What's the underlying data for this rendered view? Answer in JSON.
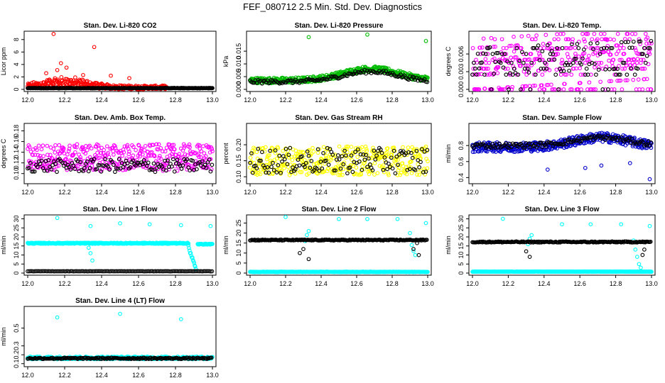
{
  "page": {
    "title": "FEF_080712  2.5 Min. Std. Dev. Diagnostics"
  },
  "chart_data": [
    {
      "id": "co2",
      "type": "scatter",
      "title": "Stan. Dev. Li-820 CO2",
      "ylabel": "Licor ppm",
      "xlim": [
        12.0,
        13.0
      ],
      "ylim": [
        0,
        9
      ],
      "xticks": [
        {
          "v": 12.0,
          "l": "12.0"
        },
        {
          "v": 12.2,
          "l": "12.2"
        },
        {
          "v": 12.4,
          "l": "12.4"
        },
        {
          "v": 12.6,
          "l": "12.6"
        },
        {
          "v": 12.8,
          "l": "12.8"
        },
        {
          "v": 13.0,
          "l": "13.0"
        }
      ],
      "yticks": [
        {
          "v": 0,
          "l": "0"
        },
        {
          "v": 2,
          "l": "2"
        },
        {
          "v": 4,
          "l": "4"
        },
        {
          "v": 6,
          "l": "6"
        },
        {
          "v": 8,
          "l": "8"
        }
      ],
      "series": [
        {
          "color": "#ff0000",
          "style": "peaked",
          "base": 0.3,
          "noise": 0.4,
          "x0": 12.0,
          "x1": 12.75,
          "peak_at": 12.2,
          "peak_h": 1.6,
          "outliers": [
            [
              12.14,
              8.9
            ],
            [
              12.36,
              6.8
            ],
            [
              12.18,
              4.2
            ],
            [
              12.21,
              3.5
            ],
            [
              12.16,
              3.1
            ],
            [
              12.1,
              2.6
            ],
            [
              12.3,
              2.3
            ],
            [
              12.45,
              2.2
            ],
            [
              12.55,
              1.8
            ]
          ]
        },
        {
          "color": "#000000",
          "style": "flat",
          "base": 0.2,
          "noise": 0.06,
          "x0": 12.0,
          "x1": 13.0
        }
      ]
    },
    {
      "id": "pressure",
      "type": "scatter",
      "title": "Stan. Dev. Li-820 Pressure",
      "ylabel": "kPa",
      "xlim": [
        12.0,
        13.0
      ],
      "ylim": [
        0,
        0.022
      ],
      "xticks": [
        {
          "v": 12.0,
          "l": "12.0"
        },
        {
          "v": 12.2,
          "l": "12.2"
        },
        {
          "v": 12.4,
          "l": "12.4"
        },
        {
          "v": 12.6,
          "l": "12.6"
        },
        {
          "v": 12.8,
          "l": "12.8"
        },
        {
          "v": 13.0,
          "l": "13.0"
        }
      ],
      "yticks": [
        {
          "v": 0,
          "l": "0.000"
        },
        {
          "v": 0.005,
          "l": "0.005"
        },
        {
          "v": 0.01,
          "l": "0.010"
        },
        {
          "v": 0.015,
          "l": "0.015"
        }
      ],
      "series": [
        {
          "color": "#00bb00",
          "style": "hump",
          "base": 0.0035,
          "noise": 0.0022,
          "x0": 12.0,
          "x1": 13.0,
          "peak_at": 12.68,
          "peak_h": 0.0045,
          "outliers": [
            [
              12.33,
              0.0205
            ],
            [
              12.66,
              0.0215
            ],
            [
              12.99,
              0.019
            ]
          ]
        },
        {
          "color": "#000000",
          "style": "hump",
          "base": 0.003,
          "noise": 0.0015,
          "x0": 12.0,
          "x1": 13.0,
          "peak_at": 12.68,
          "peak_h": 0.004,
          "sparse": 3
        }
      ]
    },
    {
      "id": "temp",
      "type": "scatter",
      "title": "Stan. Dev. Li-820 Temp.",
      "ylabel": "degrees C",
      "xlim": [
        12.0,
        13.0
      ],
      "ylim": [
        0,
        0.0095
      ],
      "xticks": [
        {
          "v": 12.0,
          "l": "12.0"
        },
        {
          "v": 12.2,
          "l": "12.2"
        },
        {
          "v": 12.4,
          "l": "12.4"
        },
        {
          "v": 12.6,
          "l": "12.6"
        },
        {
          "v": 12.8,
          "l": "12.8"
        },
        {
          "v": 13.0,
          "l": "13.0"
        }
      ],
      "yticks": [
        {
          "v": 0,
          "l": "0.000"
        },
        {
          "v": 0.003,
          "l": "0.003"
        },
        {
          "v": 0.006,
          "l": "0.006"
        }
      ],
      "series": [
        {
          "color": "#ff00ff",
          "style": "banded",
          "levels": [
            0.0,
            0.0025,
            0.0035,
            0.0045,
            0.005,
            0.006,
            0.007,
            0.0085
          ],
          "trend": 0.003,
          "x0": 12.0,
          "x1": 13.0
        },
        {
          "color": "#000000",
          "style": "banded",
          "levels": [
            0.0025,
            0.0035,
            0.0045,
            0.006,
            0.007
          ],
          "trend": 0.002,
          "x0": 12.0,
          "x1": 13.0,
          "sparse": 3
        }
      ]
    },
    {
      "id": "ambbox",
      "type": "scatter",
      "title": "Stan. Dev. Amb. Box Temp.",
      "ylabel": "degrees C",
      "xlim": [
        12.0,
        13.0
      ],
      "ylim": [
        0.085,
        0.19
      ],
      "xticks": [
        {
          "v": 12.0,
          "l": "12.0"
        },
        {
          "v": 12.2,
          "l": "12.2"
        },
        {
          "v": 12.4,
          "l": "12.4"
        },
        {
          "v": 12.6,
          "l": "12.6"
        },
        {
          "v": 12.8,
          "l": "12.8"
        },
        {
          "v": 13.0,
          "l": "13.0"
        }
      ],
      "yticks": [
        {
          "v": 0.1,
          "l": "0.10"
        },
        {
          "v": 0.12,
          "l": "0.12"
        },
        {
          "v": 0.14,
          "l": "0.14"
        },
        {
          "v": 0.16,
          "l": "0.16"
        },
        {
          "v": 0.18,
          "l": "0.18"
        }
      ],
      "series": [
        {
          "color": "#ff00ff",
          "style": "flat",
          "base": 0.13,
          "noise": 0.05,
          "x0": 12.0,
          "x1": 13.0
        },
        {
          "color": "#000000",
          "style": "flat",
          "base": 0.115,
          "noise": 0.025,
          "x0": 12.0,
          "x1": 13.0,
          "sparse": 3
        }
      ]
    },
    {
      "id": "rh",
      "type": "scatter",
      "title": "Stan. Dev. Gas Stream RH",
      "ylabel": "percent",
      "xlim": [
        12.0,
        13.0
      ],
      "ylim": [
        0.085,
        0.26
      ],
      "xticks": [
        {
          "v": 12.0,
          "l": "12.0"
        },
        {
          "v": 12.2,
          "l": "12.2"
        },
        {
          "v": 12.4,
          "l": "12.4"
        },
        {
          "v": 12.6,
          "l": "12.6"
        },
        {
          "v": 12.8,
          "l": "12.8"
        },
        {
          "v": 13.0,
          "l": "13.0"
        }
      ],
      "yticks": [
        {
          "v": 0.1,
          "l": "0.10"
        },
        {
          "v": 0.15,
          "l": "0.15"
        },
        {
          "v": 0.2,
          "l": "0.20"
        }
      ],
      "series": [
        {
          "color": "#ffff00",
          "style": "flat",
          "base": 0.15,
          "noise": 0.09,
          "x0": 12.0,
          "x1": 13.0
        },
        {
          "color": "#000000",
          "style": "flat",
          "base": 0.15,
          "noise": 0.08,
          "x0": 12.0,
          "x1": 13.0,
          "sparse": 3
        }
      ]
    },
    {
      "id": "sampleflow",
      "type": "scatter",
      "title": "Stan. Dev. Sample Flow",
      "ylabel": "ml/min",
      "xlim": [
        12.0,
        13.0
      ],
      "ylim": [
        0.35,
        1.05
      ],
      "xticks": [
        {
          "v": 12.0,
          "l": "12.0"
        },
        {
          "v": 12.2,
          "l": "12.2"
        },
        {
          "v": 12.4,
          "l": "12.4"
        },
        {
          "v": 12.6,
          "l": "12.6"
        },
        {
          "v": 12.8,
          "l": "12.8"
        },
        {
          "v": 13.0,
          "l": "13.0"
        }
      ],
      "yticks": [
        {
          "v": 0.4,
          "l": "0.4"
        },
        {
          "v": 0.6,
          "l": "0.6"
        },
        {
          "v": 0.8,
          "l": "0.8"
        }
      ],
      "series": [
        {
          "color": "#0000cc",
          "style": "hump",
          "base": 0.78,
          "noise": 0.12,
          "x0": 12.0,
          "x1": 13.0,
          "peak_at": 12.72,
          "peak_h": 0.12,
          "outliers": [
            [
              12.42,
              0.5
            ],
            [
              12.63,
              0.52
            ],
            [
              12.88,
              0.58
            ],
            [
              12.99,
              0.38
            ],
            [
              12.72,
              0.55
            ]
          ]
        },
        {
          "color": "#000000",
          "style": "hump",
          "base": 0.8,
          "noise": 0.06,
          "x0": 12.0,
          "x1": 13.0,
          "peak_at": 12.72,
          "peak_h": 0.1,
          "sparse": 3
        }
      ]
    },
    {
      "id": "line1",
      "type": "scatter",
      "title": "Stan. Dev. Line 1 Flow",
      "ylabel": "ml/min",
      "xlim": [
        12.0,
        13.0
      ],
      "ylim": [
        0,
        31
      ],
      "xticks": [
        {
          "v": 12.0,
          "l": "12.0"
        },
        {
          "v": 12.2,
          "l": "12.2"
        },
        {
          "v": 12.4,
          "l": "12.4"
        },
        {
          "v": 12.6,
          "l": "12.6"
        },
        {
          "v": 12.8,
          "l": "12.8"
        },
        {
          "v": 13.0,
          "l": "13.0"
        }
      ],
      "yticks": [
        {
          "v": 0,
          "l": "0"
        },
        {
          "v": 5,
          "l": "5"
        },
        {
          "v": 10,
          "l": "10"
        },
        {
          "v": 15,
          "l": "15"
        },
        {
          "v": 20,
          "l": "20"
        },
        {
          "v": 25,
          "l": "25"
        },
        {
          "v": 30,
          "l": "30"
        }
      ],
      "series": [
        {
          "color": "#00ffff",
          "style": "flat",
          "base": 16.5,
          "noise": 0.6,
          "x0": 12.0,
          "x1": 12.87,
          "outliers": [
            [
              12.16,
              30.5
            ],
            [
              12.34,
              26
            ],
            [
              12.5,
              27.5
            ],
            [
              12.66,
              27
            ],
            [
              12.83,
              26.5
            ],
            [
              12.99,
              26
            ],
            [
              12.33,
              14
            ],
            [
              12.34,
              11
            ],
            [
              12.35,
              7
            ]
          ]
        },
        {
          "color": "#00ffff",
          "style": "drop",
          "from": [
            12.87,
            15
          ],
          "to": [
            12.91,
            2
          ],
          "n": 14
        },
        {
          "color": "#00ffff",
          "style": "flat",
          "base": 16,
          "noise": 0.5,
          "x0": 12.92,
          "x1": 13.0
        },
        {
          "color": "#000000",
          "style": "flat",
          "base": 1.0,
          "noise": 0.1,
          "x0": 12.0,
          "x1": 13.0,
          "sparse": 3
        }
      ]
    },
    {
      "id": "line2",
      "type": "scatter",
      "title": "Stan. Dev. Line 2 Flow",
      "ylabel": "ml/min",
      "xlim": [
        12.0,
        13.0
      ],
      "ylim": [
        0,
        28
      ],
      "xticks": [
        {
          "v": 12.0,
          "l": "12.0"
        },
        {
          "v": 12.2,
          "l": "12.2"
        },
        {
          "v": 12.4,
          "l": "12.4"
        },
        {
          "v": 12.6,
          "l": "12.6"
        },
        {
          "v": 12.8,
          "l": "12.8"
        },
        {
          "v": 13.0,
          "l": "13.0"
        }
      ],
      "yticks": [
        {
          "v": 0,
          "l": "0"
        },
        {
          "v": 5,
          "l": "5"
        },
        {
          "v": 10,
          "l": "10"
        },
        {
          "v": 15,
          "l": "15"
        },
        {
          "v": 20,
          "l": "20"
        },
        {
          "v": 25,
          "l": "25"
        }
      ],
      "series": [
        {
          "color": "#00ffff",
          "style": "flat",
          "base": 0.6,
          "noise": 0.2,
          "x0": 12.0,
          "x1": 13.0,
          "outliers": [
            [
              12.2,
              28
            ],
            [
              12.33,
              21
            ],
            [
              12.32,
              19
            ],
            [
              12.5,
              27
            ],
            [
              12.66,
              27
            ],
            [
              12.83,
              27
            ],
            [
              12.99,
              25
            ],
            [
              12.31,
              16
            ],
            [
              12.9,
              20
            ],
            [
              12.91,
              14
            ],
            [
              12.92,
              11
            ],
            [
              12.93,
              9
            ]
          ]
        },
        {
          "color": "#000000",
          "style": "flat",
          "base": 16.5,
          "noise": 0.5,
          "x0": 12.0,
          "x1": 13.0,
          "sparse": 2,
          "outliers": [
            [
              12.28,
              10
            ],
            [
              12.3,
              12
            ],
            [
              12.33,
              7
            ],
            [
              12.92,
              12
            ],
            [
              12.95,
              9
            ],
            [
              12.94,
              15
            ]
          ]
        }
      ]
    },
    {
      "id": "line3",
      "type": "scatter",
      "title": "Stan. Dev. Line 3 Flow",
      "ylabel": "ml/min",
      "xlim": [
        12.0,
        13.0
      ],
      "ylim": [
        0,
        31
      ],
      "xticks": [
        {
          "v": 12.0,
          "l": "12.0"
        },
        {
          "v": 12.2,
          "l": "12.2"
        },
        {
          "v": 12.4,
          "l": "12.4"
        },
        {
          "v": 12.6,
          "l": "12.6"
        },
        {
          "v": 12.8,
          "l": "12.8"
        },
        {
          "v": 13.0,
          "l": "13.0"
        }
      ],
      "yticks": [
        {
          "v": 0,
          "l": "0"
        },
        {
          "v": 5,
          "l": "5"
        },
        {
          "v": 10,
          "l": "10"
        },
        {
          "v": 15,
          "l": "15"
        },
        {
          "v": 20,
          "l": "20"
        },
        {
          "v": 25,
          "l": "25"
        },
        {
          "v": 30,
          "l": "30"
        }
      ],
      "series": [
        {
          "color": "#00ffff",
          "style": "flat",
          "base": 0.8,
          "noise": 0.2,
          "x0": 12.0,
          "x1": 13.0,
          "outliers": [
            [
              12.17,
              30
            ],
            [
              12.33,
              21
            ],
            [
              12.32,
              19
            ],
            [
              12.5,
              27
            ],
            [
              12.66,
              27
            ],
            [
              12.83,
              27
            ],
            [
              12.99,
              26
            ],
            [
              12.31,
              16
            ],
            [
              12.9,
              18
            ],
            [
              12.91,
              13
            ],
            [
              12.92,
              9
            ],
            [
              12.93,
              5
            ],
            [
              12.94,
              3
            ]
          ]
        },
        {
          "color": "#000000",
          "style": "flat",
          "base": 17.2,
          "noise": 0.6,
          "x0": 12.0,
          "x1": 13.0,
          "sparse": 2,
          "outliers": [
            [
              12.3,
              12
            ],
            [
              12.32,
              9
            ],
            [
              12.95,
              10
            ],
            [
              12.96,
              13
            ]
          ]
        }
      ]
    },
    {
      "id": "line4",
      "type": "scatter",
      "title": "Stan. Dev. Line 4 (LT) Flow",
      "ylabel": "ml/min",
      "xlim": [
        12.0,
        13.0
      ],
      "ylim": [
        0.09,
        0.72
      ],
      "xticks": [
        {
          "v": 12.0,
          "l": "12.0"
        },
        {
          "v": 12.2,
          "l": "12.2"
        },
        {
          "v": 12.4,
          "l": "12.4"
        },
        {
          "v": 12.6,
          "l": "12.6"
        },
        {
          "v": 12.8,
          "l": "12.8"
        },
        {
          "v": 13.0,
          "l": "13.0"
        }
      ],
      "yticks": [
        {
          "v": 0.1,
          "l": "0.1"
        },
        {
          "v": 0.2,
          "l": "0.2"
        },
        {
          "v": 0.3,
          "l": "0.3"
        },
        {
          "v": 0.5,
          "l": "0.5"
        }
      ],
      "series": [
        {
          "color": "#00ffff",
          "style": "flat",
          "base": 0.165,
          "noise": 0.03,
          "x0": 12.0,
          "x1": 13.0,
          "outliers": [
            [
              12.16,
              0.62
            ],
            [
              12.5,
              0.66
            ],
            [
              12.83,
              0.6
            ]
          ]
        },
        {
          "color": "#000000",
          "style": "flat",
          "base": 0.16,
          "noise": 0.015,
          "x0": 12.0,
          "x1": 13.0,
          "sparse": 2
        }
      ]
    }
  ]
}
